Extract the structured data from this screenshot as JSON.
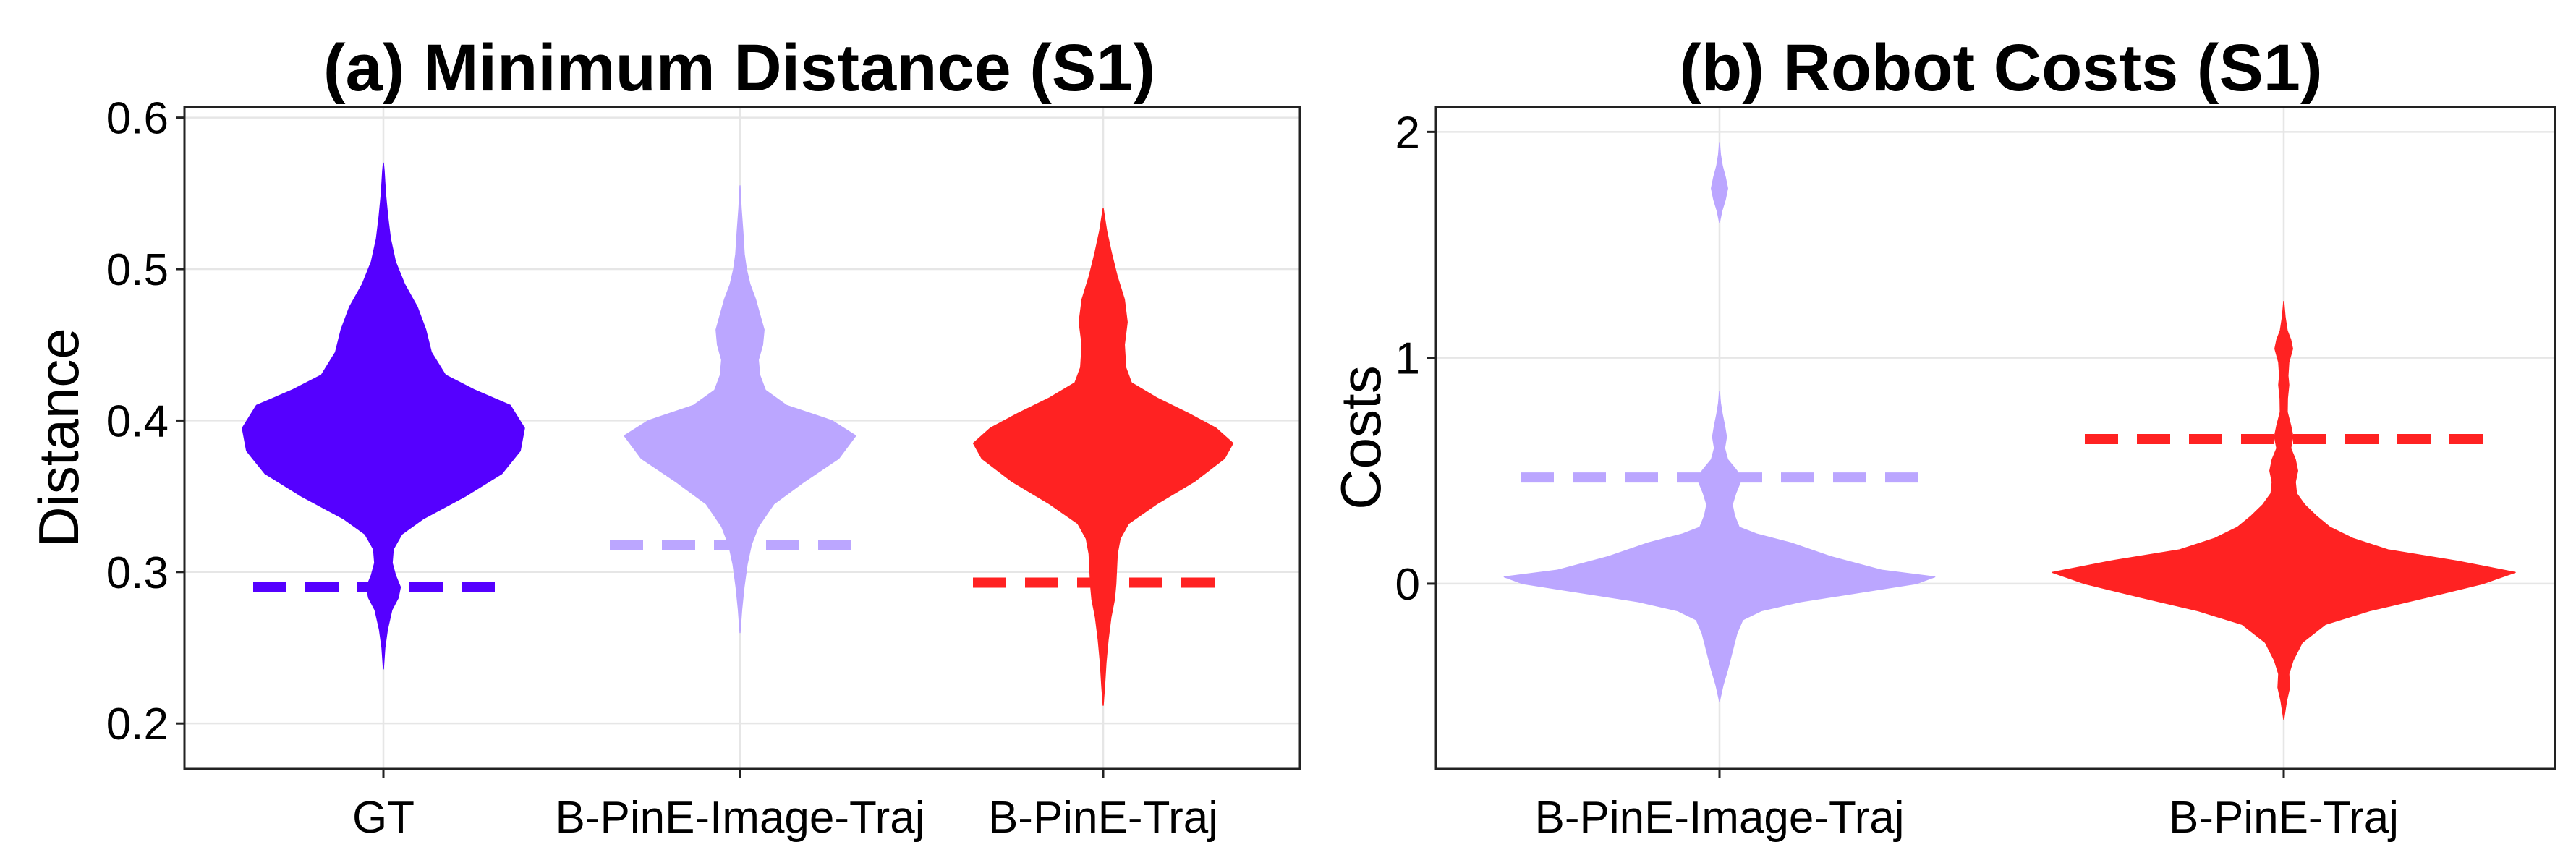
{
  "chart_data": [
    {
      "type": "violin",
      "title": "(a) Minimum Distance (S1)",
      "xlabel": "",
      "ylabel": "Distance",
      "ylim": [
        0.17,
        0.607
      ],
      "yticks": [
        0.2,
        0.3,
        0.4,
        0.5,
        0.6
      ],
      "ytick_labels": [
        "0.2",
        "0.3",
        "0.4",
        "0.5",
        "0.6"
      ],
      "categories": [
        "GT",
        "B-PinE-Image-Traj",
        "B-PinE-Traj"
      ],
      "grid": true,
      "series": [
        {
          "name": "GT",
          "color": "#5500ff",
          "reference_line": 0.29,
          "violin_profile": [
            [
              0.236,
              0.0
            ],
            [
              0.25,
              0.01
            ],
            [
              0.262,
              0.028
            ],
            [
              0.275,
              0.06
            ],
            [
              0.283,
              0.105
            ],
            [
              0.29,
              0.12
            ],
            [
              0.298,
              0.085
            ],
            [
              0.306,
              0.062
            ],
            [
              0.315,
              0.07
            ],
            [
              0.325,
              0.13
            ],
            [
              0.335,
              0.28
            ],
            [
              0.35,
              0.58
            ],
            [
              0.365,
              0.84
            ],
            [
              0.38,
              0.97
            ],
            [
              0.395,
              1.0
            ],
            [
              0.41,
              0.9
            ],
            [
              0.42,
              0.65
            ],
            [
              0.43,
              0.44
            ],
            [
              0.445,
              0.34
            ],
            [
              0.46,
              0.3
            ],
            [
              0.475,
              0.24
            ],
            [
              0.49,
              0.15
            ],
            [
              0.505,
              0.085
            ],
            [
              0.52,
              0.05
            ],
            [
              0.535,
              0.03
            ],
            [
              0.55,
              0.015
            ],
            [
              0.565,
              0.005
            ],
            [
              0.57,
              0.0
            ]
          ]
        },
        {
          "name": "B-PinE-Image-Traj",
          "color": "#bba6ff",
          "reference_line": 0.318,
          "violin_profile": [
            [
              0.26,
              0.0
            ],
            [
              0.275,
              0.012
            ],
            [
              0.29,
              0.028
            ],
            [
              0.305,
              0.05
            ],
            [
              0.318,
              0.08
            ],
            [
              0.33,
              0.13
            ],
            [
              0.345,
              0.24
            ],
            [
              0.36,
              0.46
            ],
            [
              0.375,
              0.7
            ],
            [
              0.39,
              0.82
            ],
            [
              0.4,
              0.65
            ],
            [
              0.41,
              0.33
            ],
            [
              0.42,
              0.18
            ],
            [
              0.43,
              0.14
            ],
            [
              0.44,
              0.13
            ],
            [
              0.45,
              0.16
            ],
            [
              0.46,
              0.17
            ],
            [
              0.47,
              0.14
            ],
            [
              0.48,
              0.11
            ],
            [
              0.49,
              0.07
            ],
            [
              0.5,
              0.045
            ],
            [
              0.51,
              0.03
            ],
            [
              0.525,
              0.02
            ],
            [
              0.54,
              0.008
            ],
            [
              0.555,
              0.0
            ]
          ]
        },
        {
          "name": "B-PinE-Traj",
          "color": "#ff2222",
          "reference_line": 0.293,
          "violin_profile": [
            [
              0.212,
              0.0
            ],
            [
              0.225,
              0.01
            ],
            [
              0.24,
              0.02
            ],
            [
              0.255,
              0.035
            ],
            [
              0.27,
              0.055
            ],
            [
              0.282,
              0.08
            ],
            [
              0.292,
              0.09
            ],
            [
              0.302,
              0.095
            ],
            [
              0.312,
              0.1
            ],
            [
              0.322,
              0.12
            ],
            [
              0.332,
              0.18
            ],
            [
              0.345,
              0.38
            ],
            [
              0.36,
              0.65
            ],
            [
              0.375,
              0.86
            ],
            [
              0.385,
              0.92
            ],
            [
              0.395,
              0.8
            ],
            [
              0.405,
              0.6
            ],
            [
              0.415,
              0.38
            ],
            [
              0.425,
              0.2
            ],
            [
              0.435,
              0.16
            ],
            [
              0.45,
              0.15
            ],
            [
              0.465,
              0.17
            ],
            [
              0.48,
              0.15
            ],
            [
              0.495,
              0.1
            ],
            [
              0.51,
              0.06
            ],
            [
              0.525,
              0.025
            ],
            [
              0.54,
              0.0
            ]
          ]
        }
      ]
    },
    {
      "type": "violin",
      "title": "(b) Robot Costs (S1)",
      "xlabel": "",
      "ylabel": "Costs",
      "ylim": [
        -0.82,
        2.11
      ],
      "yticks": [
        0,
        1,
        2
      ],
      "ytick_labels": [
        "0",
        "1",
        "2"
      ],
      "categories": [
        "B-PinE-Image-Traj",
        "B-PinE-Traj"
      ],
      "grid": true,
      "series": [
        {
          "name": "B-PinE-Image-Traj",
          "color": "#bba6ff",
          "reference_line": 0.47,
          "violin_profile": [
            [
              -0.52,
              0.0
            ],
            [
              -0.45,
              0.015
            ],
            [
              -0.38,
              0.035
            ],
            [
              -0.3,
              0.055
            ],
            [
              -0.22,
              0.075
            ],
            [
              -0.16,
              0.1
            ],
            [
              -0.12,
              0.18
            ],
            [
              -0.08,
              0.35
            ],
            [
              -0.04,
              0.6
            ],
            [
              0.0,
              0.85
            ],
            [
              0.03,
              0.93
            ],
            [
              0.06,
              0.7
            ],
            [
              0.12,
              0.48
            ],
            [
              0.18,
              0.31
            ],
            [
              0.22,
              0.16
            ],
            [
              0.25,
              0.085
            ],
            [
              0.3,
              0.065
            ],
            [
              0.35,
              0.055
            ],
            [
              0.4,
              0.07
            ],
            [
              0.45,
              0.09
            ],
            [
              0.5,
              0.075
            ],
            [
              0.55,
              0.035
            ],
            [
              0.6,
              0.022
            ],
            [
              0.65,
              0.03
            ],
            [
              0.7,
              0.022
            ],
            [
              0.75,
              0.012
            ],
            [
              0.8,
              0.004
            ],
            [
              0.85,
              0.0
            ]
          ]
        },
        {
          "name": "B-PinE-Traj",
          "color": "#ff2222",
          "reference_line": 0.64,
          "violin_profile": [
            [
              -0.6,
              0.0
            ],
            [
              -0.52,
              0.012
            ],
            [
              -0.46,
              0.025
            ],
            [
              -0.4,
              0.022
            ],
            [
              -0.34,
              0.04
            ],
            [
              -0.26,
              0.08
            ],
            [
              -0.18,
              0.18
            ],
            [
              -0.12,
              0.37
            ],
            [
              -0.06,
              0.62
            ],
            [
              0.0,
              0.86
            ],
            [
              0.05,
              1.0
            ],
            [
              0.1,
              0.75
            ],
            [
              0.15,
              0.45
            ],
            [
              0.2,
              0.3
            ],
            [
              0.25,
              0.2
            ],
            [
              0.3,
              0.14
            ],
            [
              0.35,
              0.09
            ],
            [
              0.4,
              0.055
            ],
            [
              0.45,
              0.05
            ],
            [
              0.5,
              0.06
            ],
            [
              0.55,
              0.05
            ],
            [
              0.6,
              0.03
            ],
            [
              0.65,
              0.04
            ],
            [
              0.7,
              0.03
            ],
            [
              0.76,
              0.015
            ],
            [
              0.82,
              0.016
            ],
            [
              0.88,
              0.022
            ],
            [
              0.92,
              0.018
            ],
            [
              0.98,
              0.022
            ],
            [
              1.04,
              0.038
            ],
            [
              1.08,
              0.03
            ],
            [
              1.12,
              0.015
            ],
            [
              1.18,
              0.006
            ],
            [
              1.25,
              0.0
            ]
          ]
        },
        {
          "name": "B-PinE-Image-Traj (upper lobe)",
          "color": "#bba6ff",
          "part_of": "B-PinE-Image-Traj",
          "violin_profile": [
            [
              1.6,
              0.0
            ],
            [
              1.65,
              0.01
            ],
            [
              1.7,
              0.025
            ],
            [
              1.75,
              0.035
            ],
            [
              1.8,
              0.025
            ],
            [
              1.85,
              0.012
            ],
            [
              1.9,
              0.004
            ],
            [
              1.95,
              0.0
            ]
          ]
        }
      ]
    }
  ]
}
